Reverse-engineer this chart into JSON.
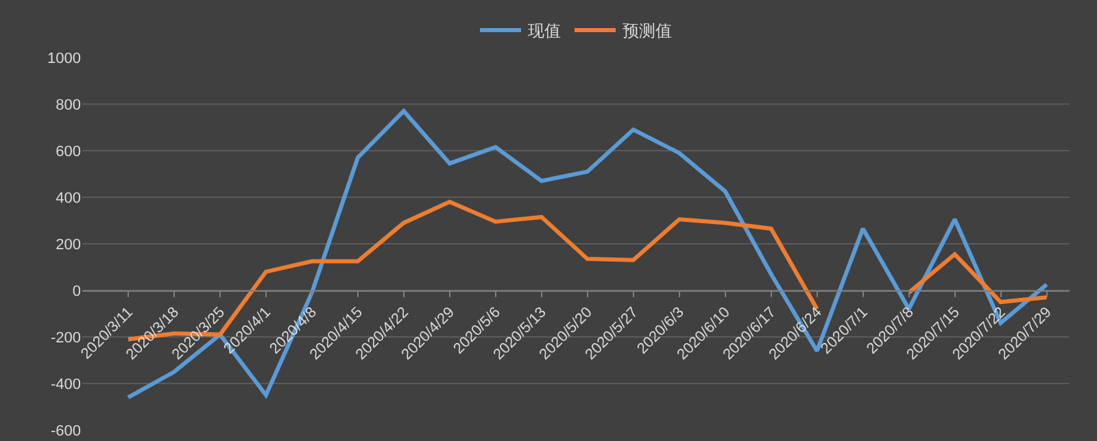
{
  "chart_data": {
    "type": "line",
    "categories": [
      "2020/3/11",
      "2020/3/18",
      "2020/3/25",
      "2020/4/1",
      "2020/4/8",
      "2020/4/15",
      "2020/4/22",
      "2020/4/29",
      "2020/5/6",
      "2020/5/13",
      "2020/5/20",
      "2020/5/27",
      "2020/6/3",
      "2020/6/10",
      "2020/6/17",
      "2020/6/24",
      "2020/7/1",
      "2020/7/8",
      "2020/7/15",
      "2020/7/22",
      "2020/7/29"
    ],
    "series": [
      {
        "name": "现值",
        "color": "#5b9bd5",
        "values": [
          -460,
          -350,
          -190,
          -450,
          -10,
          570,
          770,
          545,
          615,
          470,
          510,
          690,
          590,
          425,
          70,
          -260,
          265,
          -80,
          305,
          -140,
          25
        ]
      },
      {
        "name": "预测值",
        "color": "#ed7d31",
        "values": [
          -210,
          -185,
          -190,
          80,
          125,
          125,
          290,
          380,
          295,
          315,
          135,
          130,
          305,
          290,
          265,
          -80,
          null,
          -10,
          155,
          -50,
          -30
        ]
      }
    ],
    "ylim": [
      -600,
      1000
    ],
    "yticks": [
      -600,
      -400,
      -200,
      0,
      200,
      400,
      600,
      800,
      1000
    ],
    "grid": "y",
    "legend": "top",
    "marker": "none",
    "line_style": "solid"
  }
}
